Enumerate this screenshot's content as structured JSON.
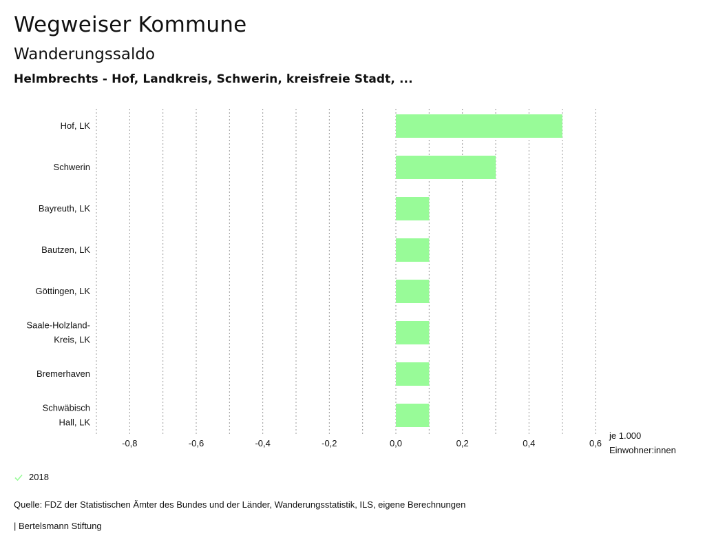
{
  "header": {
    "title": "Wegweiser Kommune",
    "subtitle": "Wanderungssaldo",
    "regions": "Helmbrechts - Hof, Landkreis, Schwerin, kreisfreie Stadt, ..."
  },
  "legend": {
    "label": "2018",
    "icon": "check-icon"
  },
  "footer": {
    "source": "Quelle: FDZ der Statistischen Ämter des Bundes und der Länder, Wanderungsstatistik, ILS, eigene Berechnungen",
    "publisher": "| Bertelsmann Stiftung"
  },
  "colors": {
    "bar": "#98fb98",
    "grid": "#999999",
    "text": "#111111"
  },
  "chart_data": {
    "type": "bar",
    "orientation": "horizontal",
    "categories": [
      [
        "Hof, LK"
      ],
      [
        "Schwerin"
      ],
      [
        "Bayreuth, LK"
      ],
      [
        "Bautzen, LK"
      ],
      [
        "Göttingen, LK"
      ],
      [
        "Saale-Holzland-",
        "Kreis, LK"
      ],
      [
        "Bremerhaven"
      ],
      [
        "Schwäbisch",
        "Hall, LK"
      ]
    ],
    "series": [
      {
        "name": "2018",
        "values": [
          0.5,
          0.3,
          0.1,
          0.1,
          0.1,
          0.1,
          0.1,
          0.1
        ]
      }
    ],
    "xlim": [
      -0.9,
      0.6
    ],
    "ticks": [
      -0.8,
      -0.6,
      -0.4,
      -0.2,
      0.0,
      0.2,
      0.4,
      0.6
    ],
    "tick_labels": [
      "-0,8",
      "-0,6",
      "-0,4",
      "-0,2",
      "0,0",
      "0,2",
      "0,4",
      "0,6"
    ],
    "gridlines": [
      -0.9,
      -0.8,
      -0.7,
      -0.6,
      -0.5,
      -0.4,
      -0.3,
      -0.2,
      -0.1,
      0.0,
      0.1,
      0.2,
      0.3,
      0.4,
      0.5,
      0.6
    ],
    "unit_label": [
      "je 1.000",
      "Einwohner:innen"
    ]
  }
}
